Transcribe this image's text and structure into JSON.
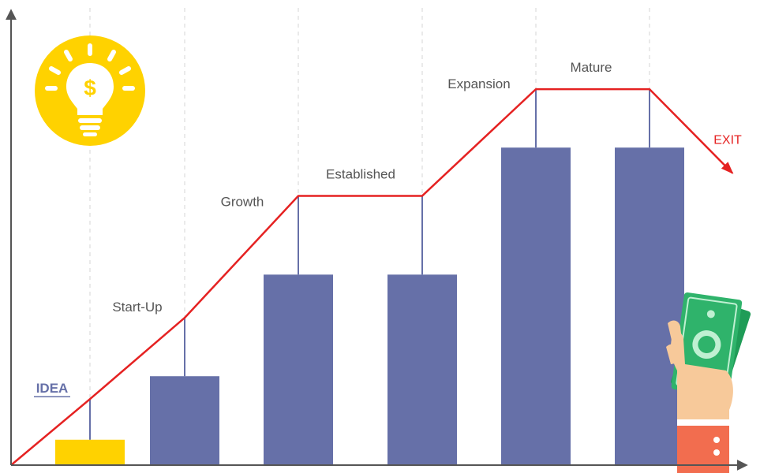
{
  "chart_data": {
    "type": "bar",
    "categories": [
      "IDEA",
      "Start-Up",
      "Growth",
      "Established",
      "Expansion",
      "Mature"
    ],
    "values": [
      1,
      3.5,
      7.5,
      7.5,
      12.5,
      12.5
    ],
    "trend_values": [
      2.6,
      5.8,
      10.6,
      10.6,
      14.8,
      14.8
    ],
    "trend_end": {
      "label": "EXIT",
      "value": 11.5
    },
    "ylim": [
      0,
      18
    ],
    "grid": "vertical dashed",
    "title": "",
    "xlabel": "",
    "ylabel": ""
  },
  "colors": {
    "bar": "#6670a8",
    "idea_bar": "#ffd200",
    "trend_line": "#e52222",
    "axis": "#555555",
    "grid": "#d4d4d4",
    "bulb_circle": "#ffd200",
    "money_green": "#2fb36b",
    "sleeve": "#f26d4f",
    "skin": "#f7c99a"
  },
  "icons": {
    "idea": "lightbulb-dollar-icon",
    "exit": "hand-holding-money-icon"
  }
}
